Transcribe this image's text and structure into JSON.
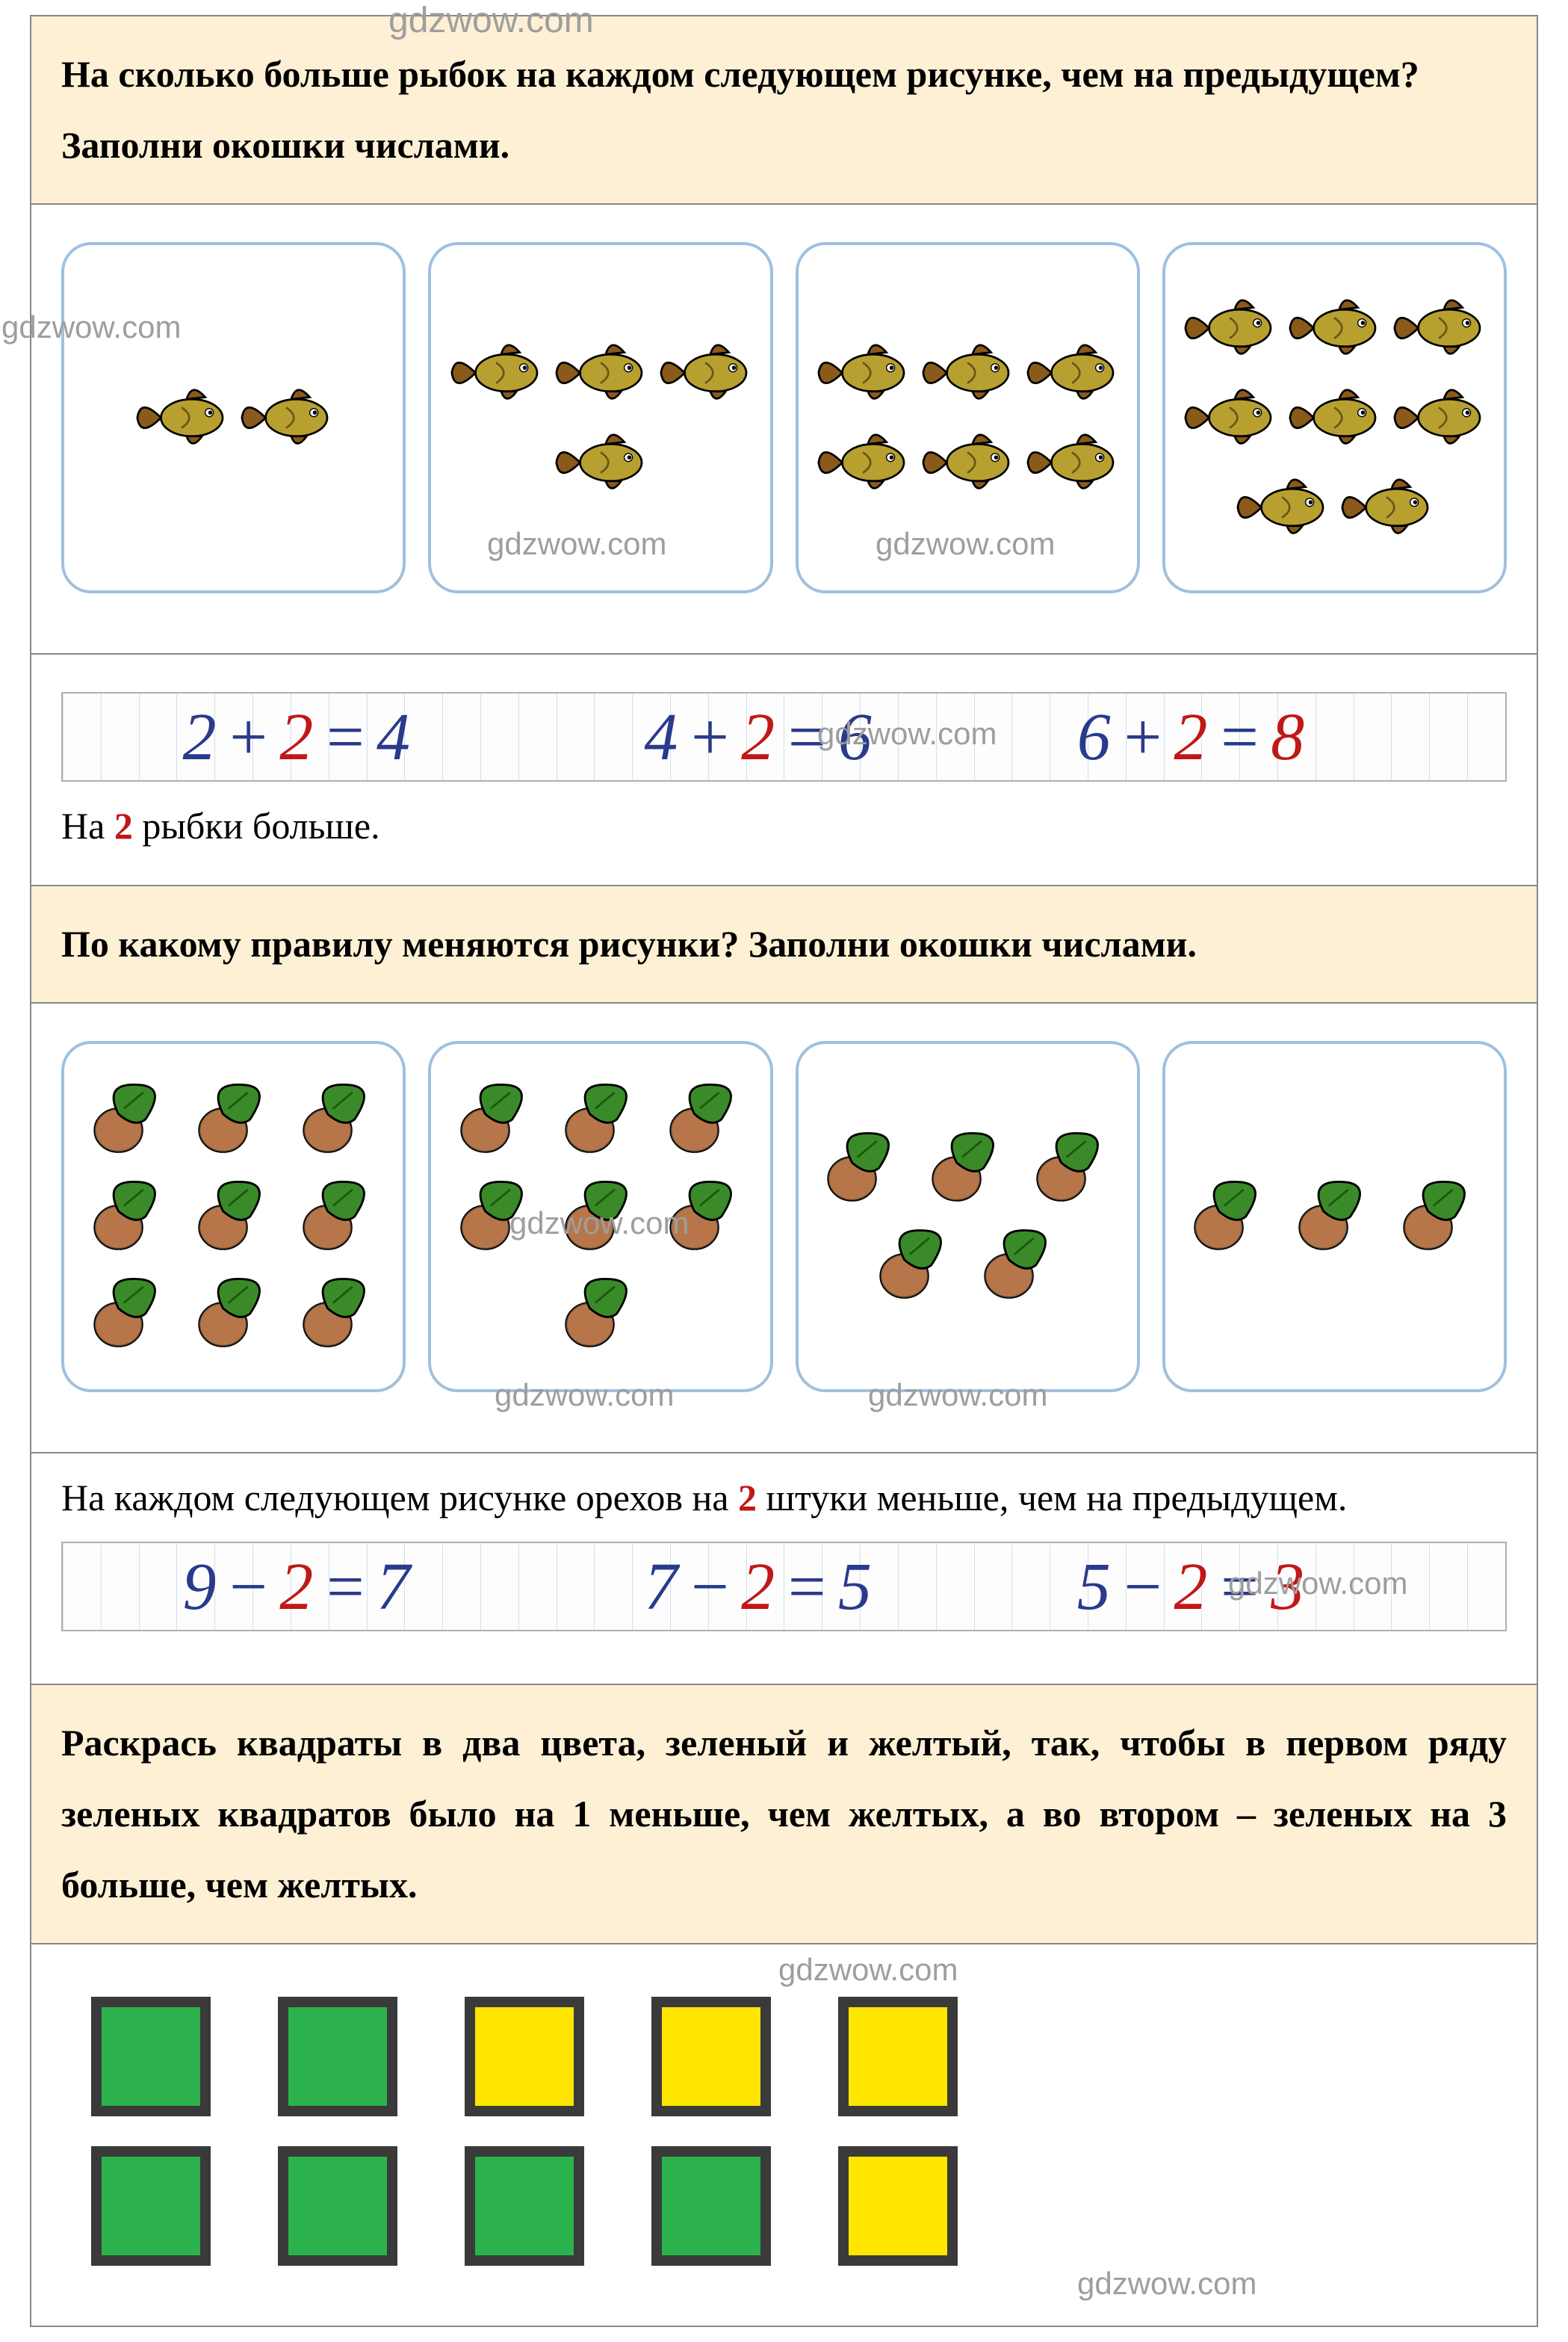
{
  "watermark": "gdzwow.com",
  "colors": {
    "prompt_bg": "#fdf0d5",
    "card_border": "#9fc0e0",
    "ink_blue": "#2a3a8c",
    "ink_red": "#c01818",
    "square_green": "#2bb24c",
    "square_yellow": "#ffe600",
    "square_border": "#3a3a3a",
    "watermark": "#9e9e9e"
  },
  "task1": {
    "prompt": "На сколько больше рыбок на каждом следующем рисунке, чем на предыдущем? Заполни окошки числами.",
    "cards": [
      2,
      4,
      6,
      8
    ],
    "equations": [
      {
        "a": "2",
        "op": "+",
        "b": "2",
        "eq": "=",
        "r": "4"
      },
      {
        "a": "4",
        "op": "+",
        "b": "2",
        "eq": "=",
        "r": "6"
      },
      {
        "a": "6",
        "op": "+",
        "b": "2",
        "eq": "=",
        "r": "8"
      }
    ],
    "answer_pre": "На ",
    "answer_num": "2",
    "answer_post": " рыбки больше."
  },
  "task2": {
    "prompt": "По какому правилу меняются рисунки? Заполни окошки числами.",
    "cards": [
      9,
      7,
      5,
      3
    ],
    "answer_pre": "На каждом следующем рисунке орехов на ",
    "answer_num": "2",
    "answer_post": " штуки меньше, чем на предыдущем.",
    "equations": [
      {
        "a": "9",
        "op": "−",
        "b": "2",
        "eq": "=",
        "r": "7"
      },
      {
        "a": "7",
        "op": "−",
        "b": "2",
        "eq": "=",
        "r": "5"
      },
      {
        "a": "5",
        "op": "−",
        "b": "2",
        "eq": "=",
        "r": "3"
      }
    ]
  },
  "task3": {
    "prompt": "Раскрась квадраты в два цвета, зеленый и желтый, так, чтобы в первом ряду зеленых квадратов было на 1 меньше, чем желтых, а во втором – зеленых на 3 больше, чем желтых.",
    "row1": [
      "green",
      "green",
      "yellow",
      "yellow",
      "yellow"
    ],
    "row2": [
      "green",
      "green",
      "green",
      "green",
      "yellow"
    ]
  },
  "icons": {
    "fish": {
      "body": "#b8a030",
      "fin": "#8a5a1a",
      "outline": "#000000"
    },
    "nut": {
      "shell": "#a0562a",
      "leaf": "#3a8a2a",
      "outline": "#000000"
    }
  }
}
